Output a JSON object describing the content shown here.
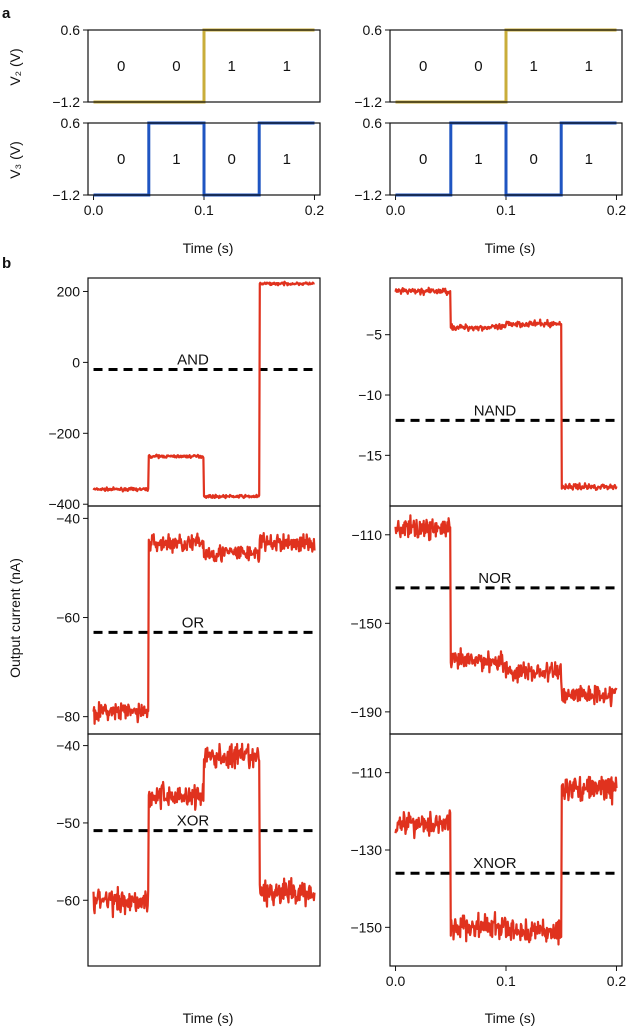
{
  "panel_labels": {
    "a": "a",
    "b": "b"
  },
  "colors": {
    "v2": "#c9ad3a",
    "v3": "#1f55c2",
    "current": "#e0321e",
    "threshold": "#000000",
    "axes": "#111111"
  },
  "labels": {
    "v2": "V₂ (V)",
    "v3": "V₃ (V)",
    "current": "Output current (nA)",
    "time": "Time (s)"
  },
  "chart_data": [
    {
      "id": "v2-left",
      "type": "line",
      "series_name": "V2",
      "x": [
        0.0,
        0.1,
        0.1,
        0.2
      ],
      "y": [
        -1.2,
        -1.2,
        0.6,
        0.6
      ],
      "xlim": [
        -0.005,
        0.205
      ],
      "ylim": [
        -1.2,
        0.6
      ],
      "yticks": [
        0.6,
        -1.2
      ],
      "ytick_labels": [
        "0.6",
        "−1.2"
      ],
      "bits": [
        "0",
        "0",
        "1",
        "1"
      ]
    },
    {
      "id": "v3-left",
      "type": "line",
      "series_name": "V3",
      "x": [
        0.0,
        0.05,
        0.05,
        0.1,
        0.1,
        0.15,
        0.15,
        0.2
      ],
      "y": [
        -1.2,
        -1.2,
        0.6,
        0.6,
        -1.2,
        -1.2,
        0.6,
        0.6
      ],
      "xlim": [
        -0.005,
        0.205
      ],
      "ylim": [
        -1.2,
        0.6
      ],
      "yticks": [
        0.6,
        -1.2
      ],
      "ytick_labels": [
        "0.6",
        "−1.2"
      ],
      "xticks": [
        0.0,
        0.1,
        0.2
      ],
      "xtick_labels": [
        "0.0",
        "0.1",
        "0.2"
      ],
      "bits": [
        "0",
        "1",
        "0",
        "1"
      ]
    },
    {
      "id": "v2-right",
      "type": "line",
      "series_name": "V2",
      "x": [
        0.0,
        0.1,
        0.1,
        0.2
      ],
      "y": [
        -1.2,
        -1.2,
        0.6,
        0.6
      ],
      "xlim": [
        -0.005,
        0.205
      ],
      "ylim": [
        -1.2,
        0.6
      ],
      "yticks": [
        0.6,
        -1.2
      ],
      "ytick_labels": [
        "0.6",
        "−1.2"
      ],
      "bits": [
        "0",
        "0",
        "1",
        "1"
      ]
    },
    {
      "id": "v3-right",
      "type": "line",
      "series_name": "V3",
      "x": [
        0.0,
        0.05,
        0.05,
        0.1,
        0.1,
        0.15,
        0.15,
        0.2
      ],
      "y": [
        -1.2,
        -1.2,
        0.6,
        0.6,
        -1.2,
        -1.2,
        0.6,
        0.6
      ],
      "xlim": [
        -0.005,
        0.205
      ],
      "ylim": [
        -1.2,
        0.6
      ],
      "yticks": [
        0.6,
        -1.2
      ],
      "ytick_labels": [
        "0.6",
        "−1.2"
      ],
      "xticks": [
        0.0,
        0.1,
        0.2
      ],
      "xtick_labels": [
        "0.0",
        "0.1",
        "0.2"
      ],
      "bits": [
        "0",
        "1",
        "0",
        "1"
      ]
    },
    {
      "id": "and",
      "type": "line",
      "gate": "AND",
      "levels": [
        -358,
        -265,
        -378,
        222
      ],
      "noise": 4,
      "threshold": -20,
      "xlim": [
        -0.005,
        0.205
      ],
      "ylim": [
        -405,
        238
      ],
      "yticks": [
        200,
        0,
        -200,
        -400
      ],
      "ytick_labels": [
        "200",
        "0",
        "−200",
        "−400"
      ]
    },
    {
      "id": "nand",
      "type": "line",
      "gate": "NAND",
      "levels": [
        -1.4,
        -4.4,
        -4.1,
        -17.6
      ],
      "noise": 0.25,
      "threshold": -12.1,
      "xlim": [
        -0.005,
        0.205
      ],
      "ylim": [
        -19.2,
        -0.3
      ],
      "yticks": [
        -5,
        -10,
        -15
      ],
      "ytick_labels": [
        "−5",
        "−10",
        "−15"
      ]
    },
    {
      "id": "or",
      "type": "line",
      "gate": "OR",
      "levels": [
        -79,
        -45,
        -47,
        -45
      ],
      "noise": 1.8,
      "threshold": -63,
      "xlim": [
        -0.005,
        0.205
      ],
      "ylim": [
        -83.5,
        -37.5
      ],
      "yticks": [
        -40,
        -60,
        -80
      ],
      "ytick_labels": [
        "−40",
        "−60",
        "−80"
      ]
    },
    {
      "id": "nor",
      "type": "line",
      "gate": "NOR",
      "levels": [
        -107,
        -167,
        -172,
        -182
      ],
      "noise": 4.5,
      "threshold": -134,
      "xlim": [
        -0.005,
        0.205
      ],
      "ylim": [
        -200,
        -97
      ],
      "yticks": [
        -110,
        -150,
        -190
      ],
      "ytick_labels": [
        "−110",
        "−150",
        "−190"
      ]
    },
    {
      "id": "xor",
      "type": "line",
      "gate": "XOR",
      "levels": [
        -60,
        -46.5,
        -41.5,
        -59
      ],
      "noise": 1.6,
      "threshold": -51,
      "xlim": [
        -0.005,
        0.205
      ],
      "ylim": [
        -68.5,
        -38.5
      ],
      "yticks": [
        -40,
        -50,
        -60
      ],
      "ytick_labels": [
        "−40",
        "−50",
        "−60"
      ]
    },
    {
      "id": "xnor",
      "type": "line",
      "gate": "XNOR",
      "levels": [
        -123,
        -150,
        -151,
        -114
      ],
      "noise": 3.2,
      "threshold": -136,
      "xlim": [
        -0.005,
        0.205
      ],
      "ylim": [
        -160,
        -100
      ],
      "yticks": [
        -110,
        -130,
        -150
      ],
      "ytick_labels": [
        "−110",
        "−130",
        "−150"
      ],
      "xticks": [
        0.0,
        0.1,
        0.2
      ],
      "xtick_labels": [
        "0.0",
        "0.1",
        "0.2"
      ]
    }
  ]
}
